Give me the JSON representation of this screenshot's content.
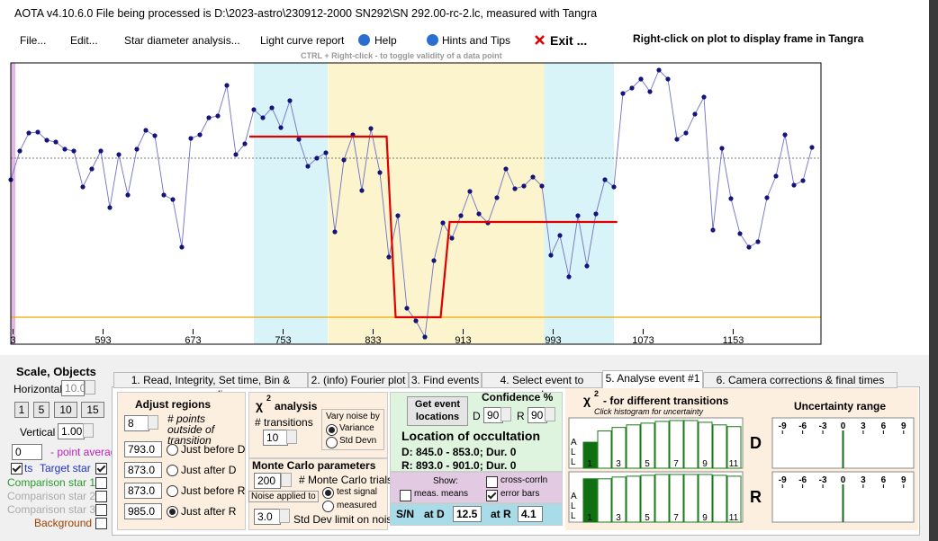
{
  "window_title": "AOTA v4.10.6.0    File being processed is D:\\2023-astro\\230912-2000 SN292\\SN 292.00-rc-2.lc, measured with Tangra",
  "menu": [
    "File...",
    "Edit...",
    "Star diameter analysis...",
    "Light curve report",
    "Help",
    "Hints and Tips",
    "Exit ..."
  ],
  "menu_hint": "Right-click on plot to display frame in Tangra",
  "ctrl_hint": "CTRL + Right-click  -  to toggle validity of a data point",
  "chart_data": {
    "type": "line",
    "x": [
      511,
      519,
      527,
      535,
      543,
      551,
      559,
      567,
      575,
      583,
      591,
      599,
      607,
      615,
      623,
      631,
      639,
      647,
      655,
      663,
      671,
      679,
      687,
      695,
      703,
      711,
      719,
      727,
      735,
      743,
      751,
      759,
      767,
      775,
      783,
      791,
      799,
      807,
      815,
      823,
      831,
      839,
      847,
      855,
      863,
      871,
      879,
      887,
      895,
      903,
      911,
      919,
      927,
      935,
      943,
      951,
      959,
      967,
      975,
      983,
      991,
      999,
      1007,
      1015,
      1023,
      1031,
      1039,
      1047,
      1055,
      1063,
      1071,
      1079,
      1087,
      1095,
      1103,
      1111,
      1119,
      1127,
      1135,
      1143,
      1151,
      1159,
      1167,
      1175,
      1183,
      1191,
      1199,
      1207,
      1215,
      1223
    ],
    "series": [
      {
        "color": "#14147a",
        "values": [
          153,
          185,
          205,
          206,
          197,
          195,
          187,
          185,
          145,
          165,
          185,
          122,
          181,
          136,
          187,
          208,
          202,
          136,
          131,
          78,
          199,
          203,
          222,
          224,
          258,
          181,
          193,
          231,
          222,
          233,
          211,
          241,
          198,
          168,
          177,
          183,
          95,
          175,
          203,
          141,
          210,
          161,
          67,
          113,
          10,
          -4,
          -22,
          63,
          105,
          88,
          113,
          140,
          115,
          105,
          133,
          165,
          143,
          146,
          156,
          146,
          69,
          91,
          45,
          113,
          57,
          115,
          153,
          145,
          249,
          255,
          265,
          251,
          275,
          265,
          198,
          205,
          226,
          245,
          97,
          188,
          132,
          93,
          78,
          84,
          133,
          157,
          203,
          147,
          152,
          189
        ]
      }
    ],
    "model": {
      "color": "#e00000",
      "x": [
        723,
        845,
        853,
        893,
        901,
        1050
      ],
      "values": [
        201,
        201,
        0,
        0,
        106,
        106
      ]
    },
    "xlim": [
      511,
      1231
    ],
    "ylim": [
      -30,
      283
    ],
    "xticks": [
      {
        "value": 513,
        "label": "3"
      },
      593,
      673,
      753,
      833,
      913,
      993,
      1073,
      1153
    ]
  },
  "scale": {
    "title": "Scale,  Objects",
    "horizontal_label": "Horizontal",
    "horizontal": "10.0",
    "buttons": [
      "1",
      "5",
      "10",
      "15"
    ],
    "vertical_label": "Vertical",
    "vertical": "1.00",
    "average": "0",
    "average_label": "- point average",
    "objects": [
      "ts",
      "Target star",
      "Comparison star 1",
      "Comparison star 2",
      "Comparison star 3",
      "Background"
    ]
  },
  "tabs": [
    "1.  Read, Integrity, Set time, Bin & normalise",
    "2. (info)  Fourier plot",
    "3. Find events",
    "4. Select event to analyse",
    "5. Analyse event #1",
    "6. Camera corrections & final times Event #1"
  ],
  "adjust_regions": {
    "title": "Adjust regions",
    "points": "8",
    "points_label": "# points outside of transition",
    "values": [
      793,
      873,
      873,
      985
    ],
    "value_labels": [
      "793.0",
      "873.0",
      "873.0",
      "985.0"
    ],
    "labels": [
      "Just before D",
      "Just after D",
      "Just before R",
      "Just after R"
    ]
  },
  "chi2": {
    "chi": "χ",
    "sup": "2",
    "title": "analysis",
    "transitions_label": "# transitions",
    "transitions": "10",
    "vary_label": "Vary noise by",
    "vary_options": [
      "Variance",
      "Std Devn"
    ]
  },
  "monte_carlo": {
    "title": "Monte Carlo parameters",
    "trials": "200",
    "trials_label": "# Monte Carlo trials",
    "noise_label": "Noise applied to",
    "noise_options": [
      "test signal",
      "measured"
    ],
    "limit": "3.0",
    "limit_label": "Std Dev limit on noise"
  },
  "locations": {
    "button": "Get event locations",
    "confidence_label": "Confidence %",
    "d_label": "D",
    "d_conf": "90",
    "r_label": "R",
    "r_conf": "90",
    "title": "Location of occultation",
    "d_result": "D: 845.0 - 853.0; Dur. 0",
    "r_result": "R: 893.0 - 901.0; Dur. 0",
    "show_label": "Show:",
    "show_options": [
      "meas. means",
      "cross-corrln",
      "error bars"
    ],
    "sn_label": "S/N",
    "at_d": "at D",
    "sn_d": "12.5",
    "at_r": "at R",
    "sn_r": "4.1"
  },
  "histogram": {
    "chi": "χ",
    "sup": "2",
    "title": "- for different transitions",
    "subtitle": "Click histogram for uncertainty",
    "all_label": [
      "A",
      "L",
      "L"
    ],
    "categories": [
      "1",
      null,
      "3",
      null,
      "5",
      null,
      "7",
      null,
      "9",
      null,
      "11"
    ],
    "ylim": [
      0,
      56
    ],
    "d": {
      "label": "D",
      "values": [
        30,
        43,
        47,
        50,
        52,
        54,
        55,
        55,
        53,
        50,
        48
      ]
    },
    "r": {
      "label": "R",
      "values": [
        50,
        50,
        52,
        53,
        54,
        55,
        55,
        55,
        55,
        54,
        53
      ]
    }
  },
  "uncertainty": {
    "title": "Uncertainty range",
    "xlim": [
      -10.5,
      10.5
    ],
    "xticks": [
      -9,
      -6,
      -3,
      0,
      3,
      6,
      9
    ],
    "range": [
      0,
      0
    ]
  }
}
